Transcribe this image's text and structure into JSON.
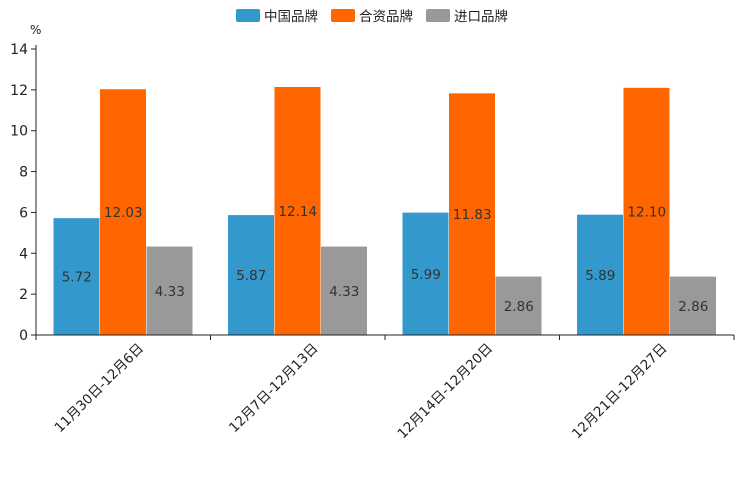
{
  "chart_data": {
    "type": "bar",
    "unit": "%",
    "categories": [
      "11月30日-12月6日",
      "12月7日-12月13日",
      "12月14日-12月20日",
      "12月21日-12月27日"
    ],
    "series": [
      {
        "name": "中国品牌",
        "color": "#3399cc",
        "values": [
          5.72,
          5.87,
          5.99,
          5.89
        ],
        "labels": [
          "5.72",
          "5.87",
          "5.99",
          "5.89"
        ]
      },
      {
        "name": "合资品牌",
        "color": "#ff6600",
        "values": [
          12.03,
          12.14,
          11.83,
          12.1
        ],
        "labels": [
          "12.03",
          "12.14",
          "11.83",
          "12.10"
        ]
      },
      {
        "name": "进口品牌",
        "color": "#999999",
        "values": [
          4.33,
          4.33,
          2.86,
          2.86
        ],
        "labels": [
          "4.33",
          "4.33",
          "2.86",
          "2.86"
        ]
      }
    ],
    "ylim": [
      0,
      14
    ],
    "yticks": [
      "0",
      "2",
      "4",
      "6",
      "8",
      "10",
      "12",
      "14"
    ],
    "legend_position": "top-center",
    "grid": false
  }
}
